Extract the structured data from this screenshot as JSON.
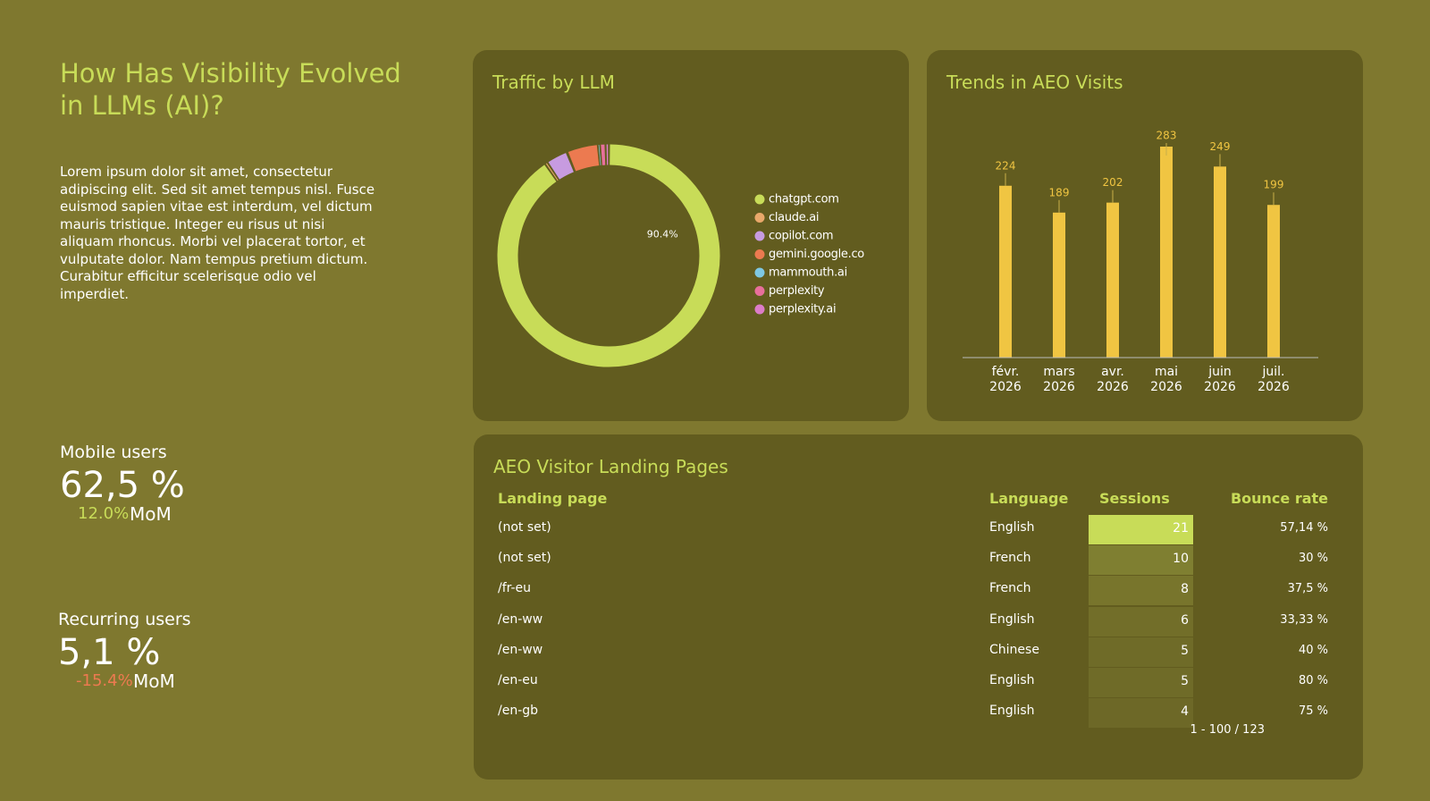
{
  "header": {
    "title": "How Has Visibility Evolved in LLMs (AI)?",
    "description": "Lorem ipsum dolor sit amet, consectetur adipiscing elit. Sed sit amet tempus nisl. Fusce euismod sapien vitae est interdum, vel dictum mauris tristique. Integer eu risus ut nisi aliquam rhoncus. Morbi vel placerat tortor, et vulputate dolor. Nam tempus pretium dictum. Curabitur efficitur scelerisque odio vel imperdiet."
  },
  "kpis": [
    {
      "label": "Mobile users",
      "value": "62,5 %",
      "change": "12.0%",
      "period": "MoM",
      "direction": "up"
    },
    {
      "label": "Recurring users",
      "value": "5,1 %",
      "change": "-15.4%",
      "period": "MoM",
      "direction": "down"
    }
  ],
  "chart_data": [
    {
      "type": "donut",
      "title": "Traffic by LLM",
      "categories": [
        "chatgpt.com",
        "claude.ai",
        "copilot.com",
        "gemini.google.co",
        "mammouth.ai",
        "perplexity",
        "perplexity.ai"
      ],
      "values": [
        90.4,
        0.3,
        3.2,
        4.6,
        0.2,
        0.9,
        0.4
      ],
      "value_labels": [
        "90.4%",
        null,
        null,
        null,
        null,
        null,
        null
      ],
      "colors": [
        "#c8dc58",
        "#e9a86a",
        "#c79be0",
        "#ec7a50",
        "#7ec8e3",
        "#e86f9c",
        "#dc7cc8"
      ]
    },
    {
      "type": "bar",
      "title": "Trends in AEO Visits",
      "categories": [
        [
          "févr.",
          "2026"
        ],
        [
          "mars",
          "2026"
        ],
        [
          "avr.",
          "2026"
        ],
        [
          "mai",
          "2026"
        ],
        [
          "juin",
          "2026"
        ],
        [
          "juil.",
          "2026"
        ]
      ],
      "values": [
        224,
        189,
        202,
        283,
        249,
        199
      ],
      "color": "#f0c542",
      "ylim": [
        0,
        275
      ]
    }
  ],
  "table": {
    "title": "AEO Visitor Landing Pages",
    "columns": [
      "Landing page",
      "Language",
      "Sessions",
      "Bounce rate"
    ],
    "rows": [
      [
        "(not set)",
        "English",
        21,
        "57,14 %"
      ],
      [
        "(not set)",
        "French",
        10,
        "30 %"
      ],
      [
        "/fr-eu",
        "French",
        8,
        "37,5 %"
      ],
      [
        "/en-ww",
        "English",
        6,
        "33,33 %"
      ],
      [
        "/en-ww",
        "Chinese",
        5,
        "40 %"
      ],
      [
        "/en-eu",
        "English",
        5,
        "80 %"
      ],
      [
        "/en-gb",
        "English",
        4,
        "75 %"
      ]
    ],
    "pagination": "1 - 100 / 123"
  }
}
